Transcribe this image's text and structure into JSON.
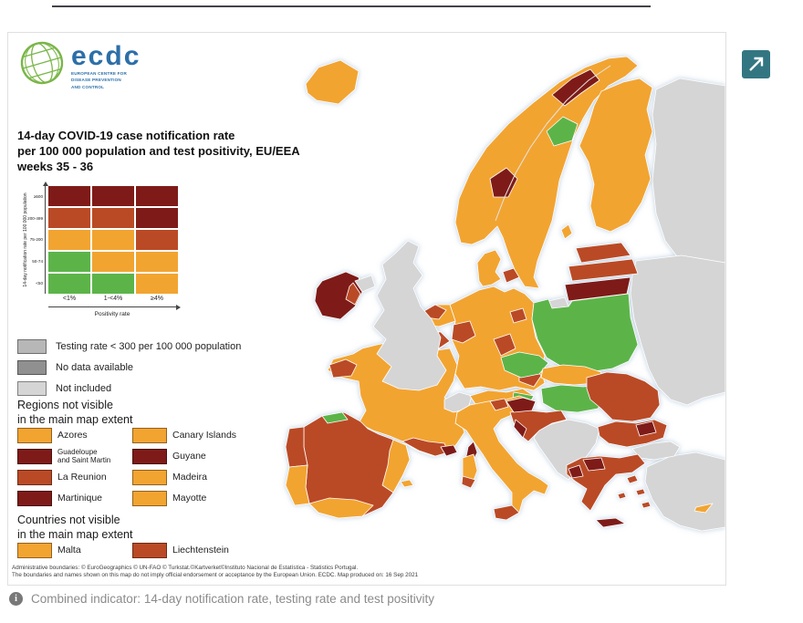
{
  "palette": {
    "green": "#5cb449",
    "orange": "#f2a431",
    "red": "#ba4a26",
    "dark_red": "#7e1b18",
    "not_included": "#d5d5d5",
    "no_data": "#909090",
    "low_testing": "#b7b7b7",
    "sea": "#edf3f8",
    "accent_teal": "#337682",
    "logo_blue": "#2c6fa8",
    "logo_green": "#7ab648"
  },
  "logo": {
    "name": "ecdc",
    "org_lines": [
      "EUROPEAN CENTRE FOR",
      "DISEASE PREVENTION",
      "AND CONTROL"
    ]
  },
  "title": {
    "lines": [
      "14-day COVID-19 case notification rate",
      "per 100 000 population and test positivity, EU/EEA",
      "weeks 35 - 36"
    ]
  },
  "matrix": {
    "y_axis_label": "14-day notification rate per 100 000 population",
    "x_axis_label": "Positivity rate",
    "x_ticks": [
      "<1%",
      "1-<4%",
      "≥4%"
    ],
    "y_ticks": [
      "≥500",
      "200-499",
      "75-200",
      "50-74",
      "<50"
    ],
    "rows": [
      [
        "dark_red",
        "dark_red",
        "dark_red"
      ],
      [
        "red",
        "red",
        "dark_red"
      ],
      [
        "orange",
        "orange",
        "red"
      ],
      [
        "green",
        "orange",
        "orange"
      ],
      [
        "green",
        "green",
        "orange"
      ]
    ]
  },
  "status_legend": [
    {
      "color": "low_testing",
      "label": "Testing rate < 300 per 100 000 population"
    },
    {
      "color": "no_data",
      "label": "No data available"
    },
    {
      "color": "not_included",
      "label": "Not included"
    }
  ],
  "regions_section": {
    "heading_lines": [
      "Regions not visible",
      "in the main map extent"
    ],
    "items": [
      {
        "color": "orange",
        "label": "Azores"
      },
      {
        "color": "orange",
        "label": "Canary Islands"
      },
      {
        "color": "dark_red",
        "label": "Guadeloupe\nand Saint Martin"
      },
      {
        "color": "dark_red",
        "label": "Guyane"
      },
      {
        "color": "red",
        "label": "La Reunion"
      },
      {
        "color": "orange",
        "label": "Madeira"
      },
      {
        "color": "dark_red",
        "label": "Martinique"
      },
      {
        "color": "orange",
        "label": "Mayotte"
      }
    ]
  },
  "countries_section": {
    "heading_lines": [
      "Countries not visible",
      "in the main map extent"
    ],
    "items": [
      {
        "color": "orange",
        "label": "Malta"
      },
      {
        "color": "red",
        "label": "Liechtenstein"
      }
    ]
  },
  "footnote_lines": [
    "Administrative boundaries: © EuroGeographics © UN-FAO © Turkstat.©Kartverket©Instituto Nacional de Estatística - Statistics Portugal.",
    "The boundaries and names shown on this map do not imply official endorsement or acceptance by the European Union. ECDC. Map produced on: 16 Sep 2021"
  ],
  "caption": {
    "icon_glyph": "i",
    "text": "Combined indicator: 14-day notification rate, testing rate and test positivity"
  },
  "map_regions": {
    "russia_ne": "not_included",
    "east_mass": "not_included",
    "turkey": "not_included",
    "turkey_thrace": "not_included",
    "iceland": "orange",
    "scandinavia": "orange",
    "norway_troms_dark": "dark_red",
    "sweden_north_green": "green",
    "norway_oslo_dark": "dark_red",
    "scandinavia_border": "line",
    "finland": "orange",
    "denmark": "orange",
    "denmark_zealand": "red",
    "gotland": "orange",
    "estonia": "red",
    "latvia": "red",
    "lithuania": "dark_red",
    "kaliningrad": "not_included",
    "germany": "orange",
    "germany_red_w": "red",
    "germany_red_berlin": "red",
    "germany_red_c": "red",
    "germany_red_se": "red",
    "netherlands": "orange",
    "netherlands_red_n": "red",
    "belgium": "orange",
    "belgium_red_e": "red",
    "france": "orange",
    "france_red_nw": "red",
    "france_red_n": "red",
    "france_red_s": "red",
    "france_dark_se": "dark_red",
    "corsica": "dark_red",
    "switzerland": "not_included",
    "austria": "orange",
    "austria_green_e": "green",
    "czechia": "green",
    "poland": "green",
    "slovakia": "orange",
    "hungary": "green",
    "italy": "orange",
    "italy_red_n": "red",
    "sicily": "red",
    "sardinia": "orange",
    "sardinia_red_s": "red",
    "west_balkans": "not_included",
    "croatia": "red",
    "croatia_dark_coast": "dark_red",
    "slovenia": "dark_red",
    "romania": "red",
    "bulgaria": "red",
    "bulgaria_dark_ne": "dark_red",
    "greece": "red",
    "greece_dark_n": "dark_red",
    "greece_dark_w": "dark_red",
    "crete": "dark_red",
    "aegean_islands": "red",
    "spain": "red",
    "spain_orange_e": "orange",
    "spain_orange_s": "orange",
    "spain_green_n": "green",
    "balearics": "orange",
    "portugal_n": "red",
    "portugal_s": "orange",
    "uk": "not_included",
    "ireland": "dark_red",
    "ireland_red_e": "red",
    "n_ireland": "not_included",
    "cyprus": "orange"
  }
}
